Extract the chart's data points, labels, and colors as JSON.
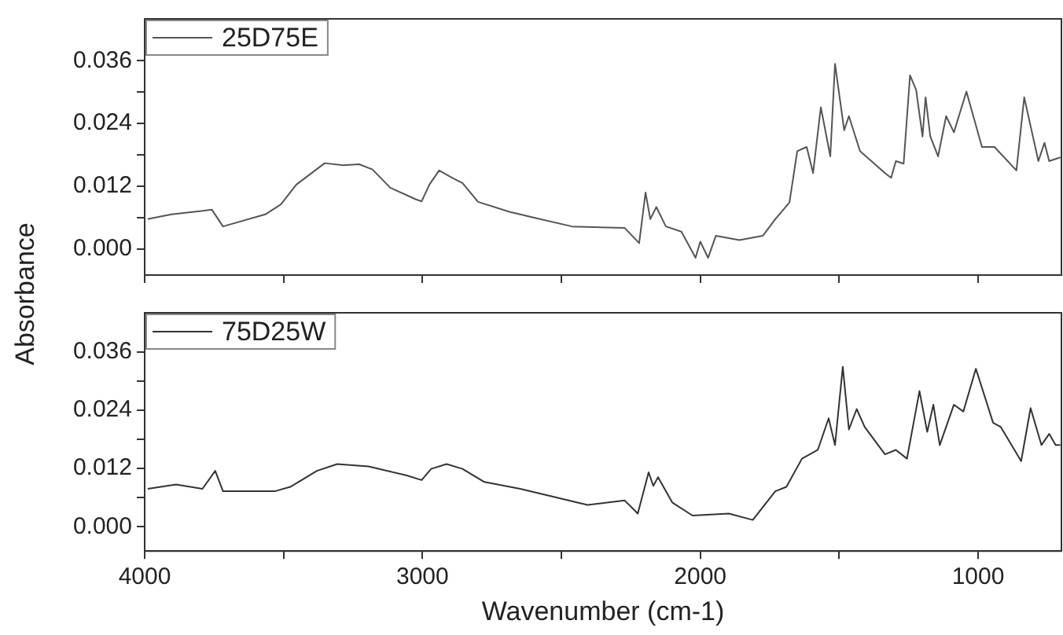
{
  "chart_data": [
    {
      "type": "line",
      "ylabel": "Absorbance",
      "xlim": [
        4000,
        700
      ],
      "ylim": [
        -0.005,
        0.044
      ],
      "xticks": [
        4000,
        {
          "value": 3500,
          "label": null
        },
        3000,
        {
          "value": 2500,
          "label": null
        },
        2000,
        {
          "value": 1500,
          "label": null
        },
        1000
      ],
      "yticks": [
        {
          "value": 0,
          "label": "0.000"
        },
        {
          "value": 0.006,
          "label": null
        },
        {
          "value": 0.012,
          "label": "0.012"
        },
        {
          "value": 0.018,
          "label": null
        },
        {
          "value": 0.024,
          "label": "0.024"
        },
        {
          "value": 0.03,
          "label": null
        },
        {
          "value": 0.036,
          "label": "0.036"
        }
      ],
      "tick_labels": "y",
      "grid": false,
      "legend": "top left",
      "marker": "none",
      "line_style": "solid",
      "series": [
        {
          "name": "25D75E",
          "color": "#555555",
          "x": [
            3989,
            3904,
            3758,
            3718,
            3566,
            3510,
            3454,
            3352,
            3285,
            3228,
            3180,
            3116,
            3025,
            3003,
            2975,
            2940,
            2890,
            2856,
            2800,
            2687,
            2592,
            2462,
            2272,
            2220,
            2197,
            2180,
            2158,
            2124,
            2068,
            2017,
            2000,
            1972,
            1944,
            1859,
            1775,
            1730,
            1679,
            1651,
            1617,
            1594,
            1566,
            1532,
            1515,
            1482,
            1465,
            1425,
            1335,
            1313,
            1296,
            1268,
            1245,
            1223,
            1200,
            1189,
            1172,
            1144,
            1115,
            1087,
            1042,
            986,
            941,
            862,
            834,
            806,
            783,
            761,
            744,
            704
          ],
          "values": [
            0.0057,
            0.0066,
            0.0075,
            0.0043,
            0.0066,
            0.0085,
            0.0123,
            0.0164,
            0.016,
            0.0162,
            0.0152,
            0.0117,
            0.0095,
            0.0091,
            0.0123,
            0.015,
            0.0135,
            0.0126,
            0.009,
            0.0071,
            0.0059,
            0.0043,
            0.004,
            0.0011,
            0.0108,
            0.0057,
            0.008,
            0.0043,
            0.0033,
            -0.0017,
            0.0014,
            -0.0017,
            0.0025,
            0.0017,
            0.0025,
            0.0057,
            0.0089,
            0.0187,
            0.0195,
            0.0145,
            0.0271,
            0.0177,
            0.0354,
            0.0227,
            0.0254,
            0.0187,
            0.0145,
            0.0136,
            0.0168,
            0.0163,
            0.0332,
            0.0304,
            0.0215,
            0.029,
            0.0215,
            0.0177,
            0.0254,
            0.0223,
            0.0301,
            0.0195,
            0.0195,
            0.015,
            0.029,
            0.0223,
            0.0168,
            0.0203,
            0.0168,
            0.0175
          ]
        }
      ]
    },
    {
      "type": "line",
      "xlabel": "Wavenumber (cm-1)",
      "xlim": [
        4000,
        700
      ],
      "ylim": [
        -0.005,
        0.044
      ],
      "xticks": [
        4000,
        {
          "value": 3500,
          "label": null
        },
        3000,
        {
          "value": 2500,
          "label": null
        },
        2000,
        {
          "value": 1500,
          "label": null
        },
        1000
      ],
      "yticks": [
        {
          "value": 0,
          "label": "0.000"
        },
        {
          "value": 0.006,
          "label": null
        },
        {
          "value": 0.012,
          "label": "0.012"
        },
        {
          "value": 0.018,
          "label": null
        },
        {
          "value": 0.024,
          "label": "0.024"
        },
        {
          "value": 0.03,
          "label": null
        },
        {
          "value": 0.036,
          "label": "0.036"
        }
      ],
      "grid": false,
      "legend": "top left",
      "marker": "none",
      "line_style": "solid",
      "series": [
        {
          "name": "75D25W",
          "color": "#333333",
          "x": [
            3989,
            3887,
            3792,
            3746,
            3718,
            3622,
            3532,
            3476,
            3380,
            3307,
            3194,
            3059,
            3003,
            2969,
            2913,
            2856,
            2777,
            2648,
            2406,
            2272,
            2225,
            2186,
            2169,
            2152,
            2101,
            2028,
            1897,
            1811,
            1730,
            1690,
            1634,
            1577,
            1538,
            1515,
            1487,
            1465,
            1437,
            1408,
            1335,
            1296,
            1256,
            1211,
            1183,
            1161,
            1138,
            1087,
            1053,
            1008,
            946,
            918,
            845,
            811,
            772,
            744,
            721,
            704
          ],
          "values": [
            0.0078,
            0.0087,
            0.0078,
            0.0115,
            0.0073,
            0.0073,
            0.0073,
            0.0082,
            0.0115,
            0.0129,
            0.0124,
            0.0106,
            0.0096,
            0.0119,
            0.0129,
            0.0119,
            0.0092,
            0.0078,
            0.0045,
            0.0054,
            0.0027,
            0.0112,
            0.0084,
            0.0102,
            0.005,
            0.0023,
            0.0027,
            0.0014,
            0.0073,
            0.0082,
            0.014,
            0.0158,
            0.0223,
            0.0168,
            0.0329,
            0.02,
            0.0242,
            0.0205,
            0.0149,
            0.0158,
            0.014,
            0.0279,
            0.0195,
            0.0251,
            0.0168,
            0.0251,
            0.0237,
            0.0325,
            0.0214,
            0.0205,
            0.0135,
            0.0244,
            0.0168,
            0.0191,
            0.0168,
            0.0168
          ]
        }
      ]
    }
  ]
}
